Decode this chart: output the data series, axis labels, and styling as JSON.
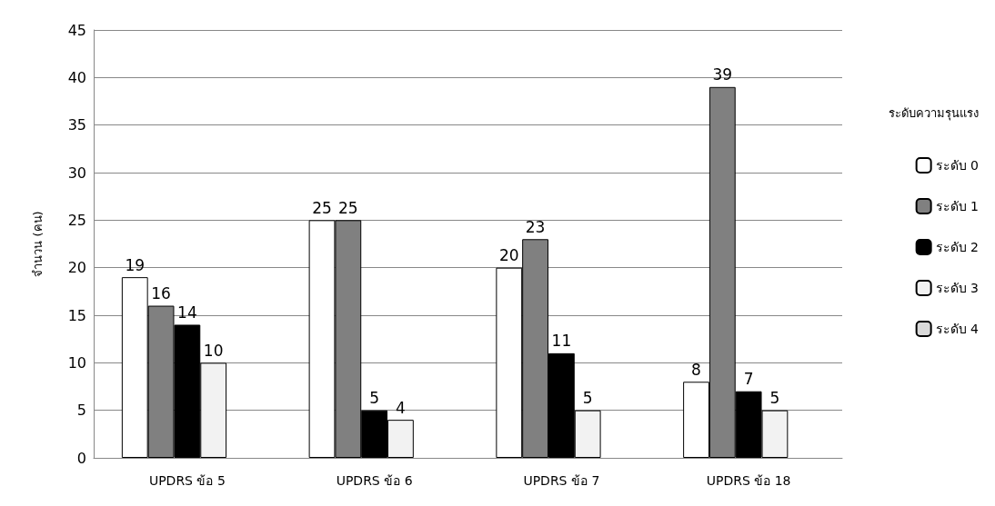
{
  "chart_data": {
    "type": "bar",
    "ylabel": "จำนวน (คน)",
    "legend_title": "ระดับความรุนแรง",
    "categories": [
      "UPDRS ข้อ 5",
      "UPDRS ข้อ 6",
      "UPDRS ข้อ 7",
      "UPDRS ข้อ 18"
    ],
    "series": [
      {
        "name": "ระดับ 0",
        "color": "#ffffff",
        "values": [
          19,
          25,
          20,
          8
        ],
        "value_labels": [
          "19",
          "25",
          "20",
          "8"
        ]
      },
      {
        "name": "ระดับ 1",
        "color": "#808080",
        "values": [
          16,
          25,
          23,
          39
        ],
        "value_labels": [
          "16",
          "25",
          "23",
          "39"
        ]
      },
      {
        "name": "ระดับ 2",
        "color": "#000000",
        "values": [
          14,
          5,
          11,
          7
        ],
        "value_labels": [
          "14",
          "5",
          "11",
          "7"
        ]
      },
      {
        "name": "ระดับ 3",
        "color": "#f2f2f2",
        "values": [
          10,
          4,
          5,
          5
        ],
        "value_labels": [
          "10",
          "4",
          "5",
          "5"
        ]
      },
      {
        "name": "ระดับ 4",
        "color": "#d9d9d9",
        "values": [
          null,
          null,
          null,
          null
        ],
        "value_labels": [
          null,
          null,
          null,
          null
        ]
      }
    ],
    "ylim": [
      0,
      45
    ],
    "yticks": [
      0,
      5,
      10,
      15,
      20,
      25,
      30,
      35,
      40,
      45
    ],
    "grid": "y",
    "legend": "right"
  }
}
